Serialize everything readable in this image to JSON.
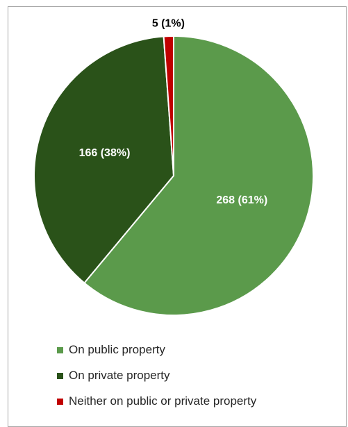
{
  "chart_data": {
    "type": "pie",
    "title": "",
    "slices": [
      {
        "label": "On public property",
        "value": 268,
        "percent": 61,
        "data_label": "268 (61%)",
        "color": "#5b9a4b",
        "label_color": "#ffffff"
      },
      {
        "label": "On private property",
        "value": 166,
        "percent": 38,
        "data_label": "166 (38%)",
        "color": "#2a5219",
        "label_color": "#ffffff"
      },
      {
        "label": "Neither on public or private property",
        "value": 5,
        "percent": 1,
        "data_label": "5 (1%)",
        "color": "#c00000",
        "label_color": "#000000"
      }
    ],
    "legend_position": "bottom"
  }
}
